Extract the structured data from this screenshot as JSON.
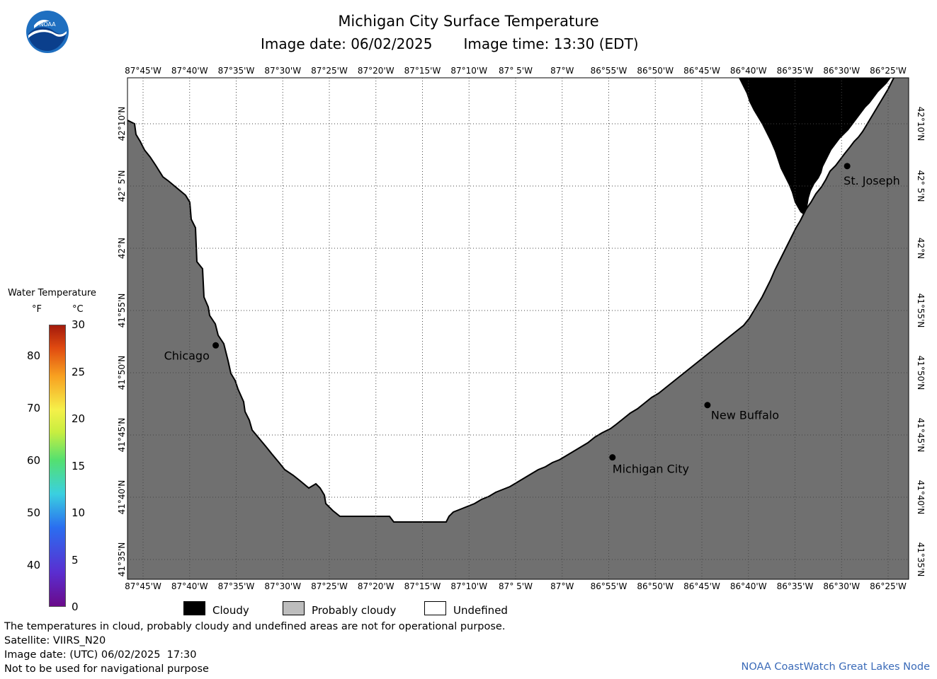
{
  "header": {
    "title": "Michigan City Surface Temperature",
    "image_date": "Image date: 06/02/2025",
    "image_time": "Image time: 13:30 (EDT)"
  },
  "logo": {
    "text": "NOAA",
    "icon": "noaa-logo-icon"
  },
  "map": {
    "lon_labels": [
      "87°45'W",
      "87°40'W",
      "87°35'W",
      "87°30'W",
      "87°25'W",
      "87°20'W",
      "87°15'W",
      "87°10'W",
      "87° 5'W",
      "87°W",
      "86°55'W",
      "86°50'W",
      "86°45'W",
      "86°40'W",
      "86°35'W",
      "86°30'W",
      "86°25'W"
    ],
    "lat_labels": [
      "42°10'N",
      "42° 5'N",
      "42°N",
      "41°55'N",
      "41°50'N",
      "41°45'N",
      "41°40'N",
      "41°35'N"
    ],
    "cities": [
      {
        "name": "Chicago",
        "lat": 41.87,
        "lon": -87.62
      },
      {
        "name": "St. Joseph",
        "lat": 42.11,
        "lon": -86.49
      },
      {
        "name": "New Buffalo",
        "lat": 41.79,
        "lon": -86.74
      },
      {
        "name": "Michigan City",
        "lat": 41.72,
        "lon": -86.91
      }
    ],
    "colors": {
      "land": "#707070",
      "cloudy": "#000000",
      "undefined": "#ffffff",
      "grid": "#555555"
    }
  },
  "legend": {
    "title": "Water Temperature",
    "unit_f": "°F",
    "unit_c": "°C",
    "ticks_f": [
      "80",
      "70",
      "60",
      "50",
      "40"
    ],
    "ticks_c": [
      "30",
      "25",
      "20",
      "15",
      "10",
      "5",
      "0"
    ],
    "range_f": [
      32,
      86
    ],
    "range_c": [
      0,
      30
    ]
  },
  "key": [
    {
      "label": "Cloudy",
      "color": "#000000"
    },
    {
      "label": "Probably cloudy",
      "color": "#bdbdbd"
    },
    {
      "label": "Undefined",
      "color": "#ffffff"
    }
  ],
  "footer": {
    "line1": "The temperatures in cloud, probably cloudy and undefined areas are not for operational purpose.",
    "line2": "Satellite: VIIRS_N20",
    "line3": "Image date: (UTC) 06/02/2025  17:30",
    "line4": "Not to be used for navigational purpose",
    "credit": "NOAA CoastWatch Great Lakes Node"
  }
}
